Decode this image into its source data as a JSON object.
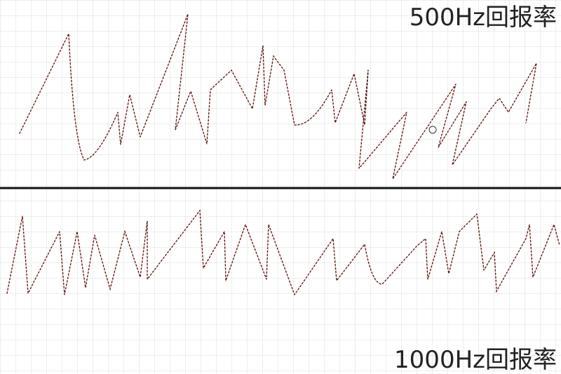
{
  "labels": {
    "top": "500Hz回报率",
    "bottom": "1000Hz回报率"
  }
}
